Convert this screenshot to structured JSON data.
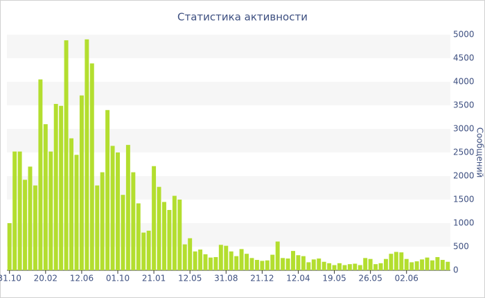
{
  "chart_data": {
    "type": "bar",
    "title": "Статистика активности",
    "y_label": "Сообщений",
    "categories": [
      "31.10",
      null,
      null,
      null,
      null,
      null,
      null,
      "20.02",
      null,
      null,
      null,
      null,
      null,
      null,
      "12.06",
      null,
      null,
      null,
      null,
      null,
      null,
      "01.10",
      null,
      null,
      null,
      null,
      null,
      null,
      "21.01",
      null,
      null,
      null,
      null,
      null,
      null,
      "12.05",
      null,
      null,
      null,
      null,
      null,
      null,
      "31.08",
      null,
      null,
      null,
      null,
      null,
      null,
      "21.12",
      null,
      null,
      null,
      null,
      null,
      null,
      "12.04",
      null,
      null,
      null,
      null,
      null,
      null,
      "19.05",
      null,
      null,
      null,
      null,
      null,
      null,
      "26.05",
      null,
      null,
      null,
      null,
      null,
      null,
      "02.06",
      null,
      null,
      null,
      null,
      null,
      null,
      null,
      null
    ],
    "values": [
      1000,
      2520,
      2520,
      1920,
      2200,
      1800,
      4050,
      3100,
      2520,
      3530,
      3490,
      4880,
      2800,
      2450,
      3710,
      4900,
      4390,
      1800,
      2080,
      3400,
      2640,
      2500,
      1600,
      2660,
      2080,
      1420,
      800,
      840,
      2210,
      1770,
      1450,
      1280,
      1580,
      1500,
      550,
      680,
      400,
      440,
      340,
      270,
      280,
      540,
      520,
      400,
      300,
      450,
      350,
      260,
      220,
      200,
      210,
      330,
      610,
      260,
      250,
      410,
      320,
      300,
      170,
      230,
      250,
      180,
      150,
      110,
      150,
      110,
      130,
      140,
      110,
      260,
      240,
      130,
      150,
      240,
      350,
      390,
      380,
      240,
      170,
      190,
      230,
      270,
      210,
      280,
      220,
      180
    ],
    "color": "#b3de2f",
    "ylim": [
      0,
      5000
    ],
    "yticks": [
      0,
      500,
      1000,
      1500,
      2000,
      2500,
      3000,
      3500,
      4000,
      4500,
      5000
    ],
    "y_axis_side": "right",
    "banded_grid": true
  }
}
